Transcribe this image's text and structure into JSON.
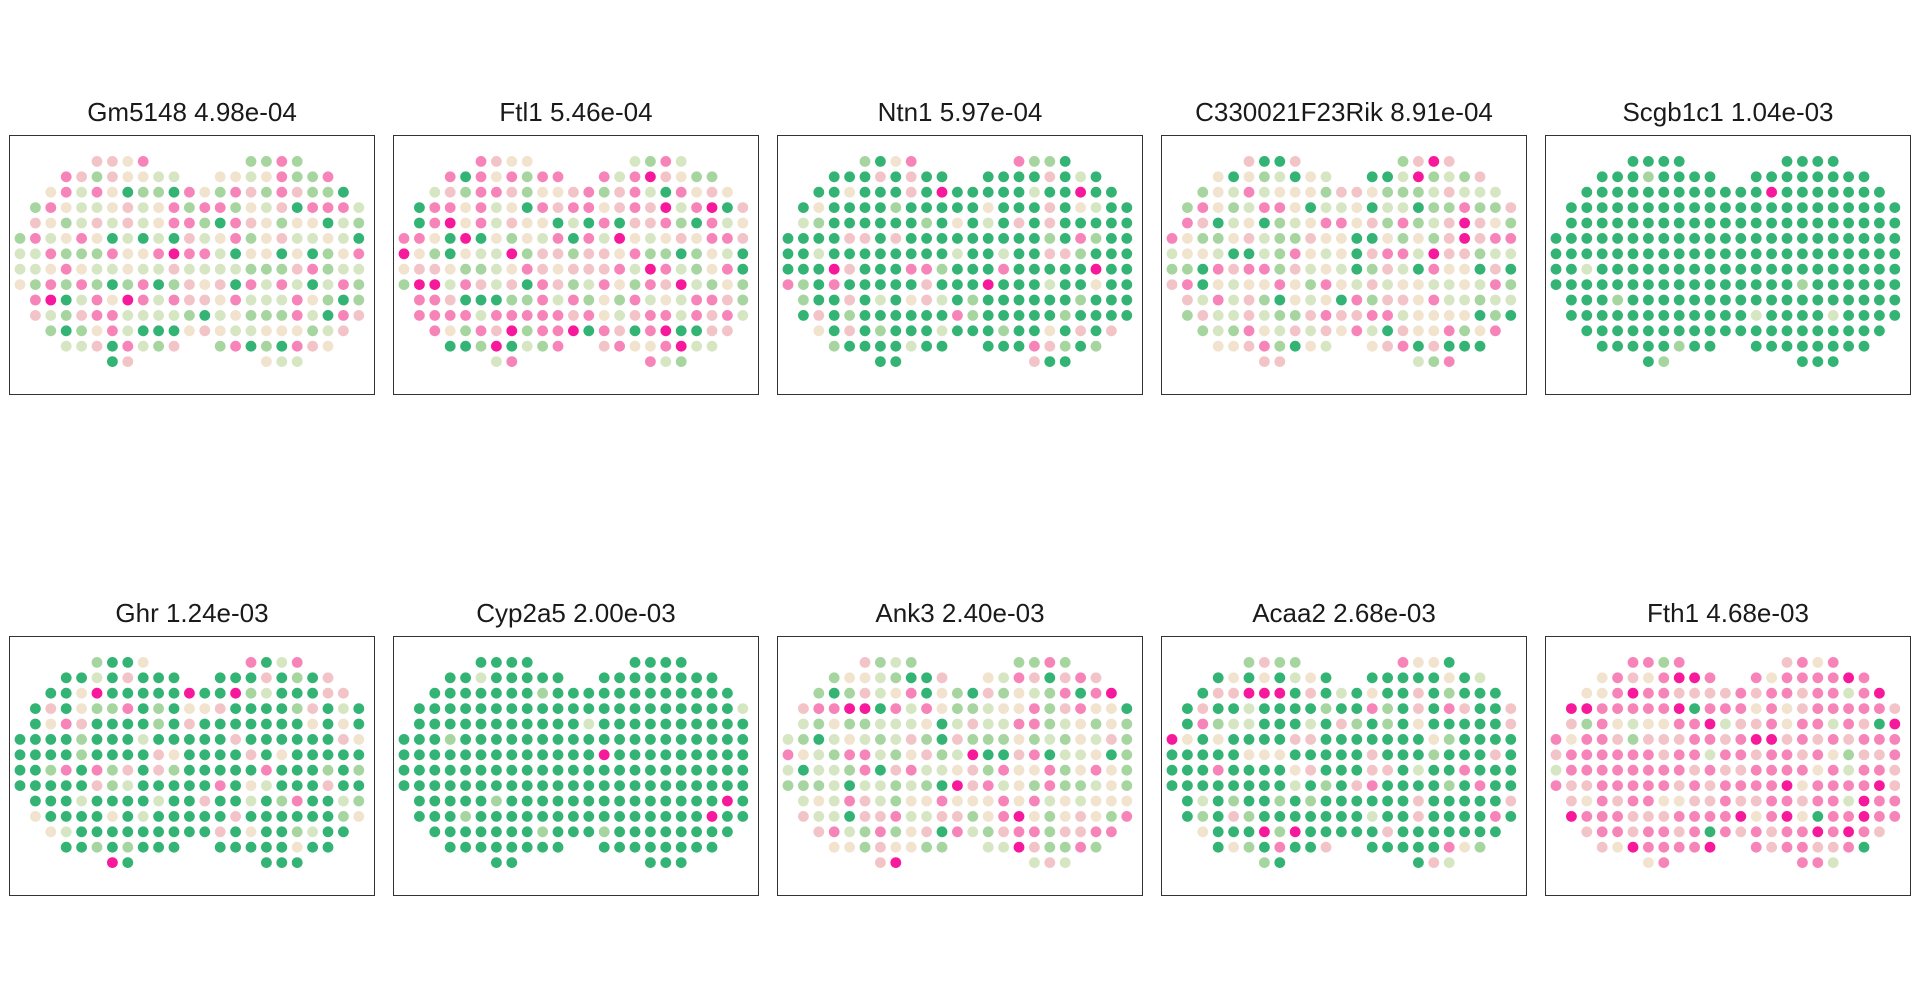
{
  "palette": [
    "#f7199b",
    "#f784b8",
    "#f2c4c8",
    "#f1e3cd",
    "#d6e6c3",
    "#a6d5a0",
    "#33b374"
  ],
  "chart_data": [
    {
      "type": "scatter",
      "title": "Gm5148 4.98e-04",
      "gene": "Gm5148",
      "value": "4.98e-04",
      "pattern": "mixed",
      "seed": 11
    },
    {
      "type": "scatter",
      "title": "Ftl1 5.46e-04",
      "gene": "Ftl1",
      "value": "5.46e-04",
      "pattern": "mixed-pink",
      "seed": 23
    },
    {
      "type": "scatter",
      "title": "Ntn1 5.97e-04",
      "gene": "Ntn1",
      "value": "5.97e-04",
      "pattern": "green-heavy",
      "seed": 37
    },
    {
      "type": "scatter",
      "title": "C330021F23Rik 8.91e-04",
      "gene": "C330021F23Rik",
      "value": "8.91e-04",
      "pattern": "mixed",
      "seed": 41
    },
    {
      "type": "scatter",
      "title": "Scgb1c1 1.04e-03",
      "gene": "Scgb1c1",
      "value": "1.04e-03",
      "pattern": "all-green",
      "seed": 53
    },
    {
      "type": "scatter",
      "title": "Ghr 1.24e-03",
      "gene": "Ghr",
      "value": "1.24e-03",
      "pattern": "green-heavy",
      "seed": 67
    },
    {
      "type": "scatter",
      "title": "Cyp2a5 2.00e-03",
      "gene": "Cyp2a5",
      "value": "2.00e-03",
      "pattern": "all-green",
      "seed": 71
    },
    {
      "type": "scatter",
      "title": "Ank3 2.40e-03",
      "gene": "Ank3",
      "value": "2.40e-03",
      "pattern": "mixed",
      "seed": 83
    },
    {
      "type": "scatter",
      "title": "Acaa2 2.68e-03",
      "gene": "Acaa2",
      "value": "2.68e-03",
      "pattern": "green-heavy",
      "seed": 97
    },
    {
      "type": "scatter",
      "title": "Fth1 4.68e-03",
      "gene": "Fth1",
      "value": "4.68e-03",
      "pattern": "pink-heavy",
      "seed": 101
    }
  ]
}
